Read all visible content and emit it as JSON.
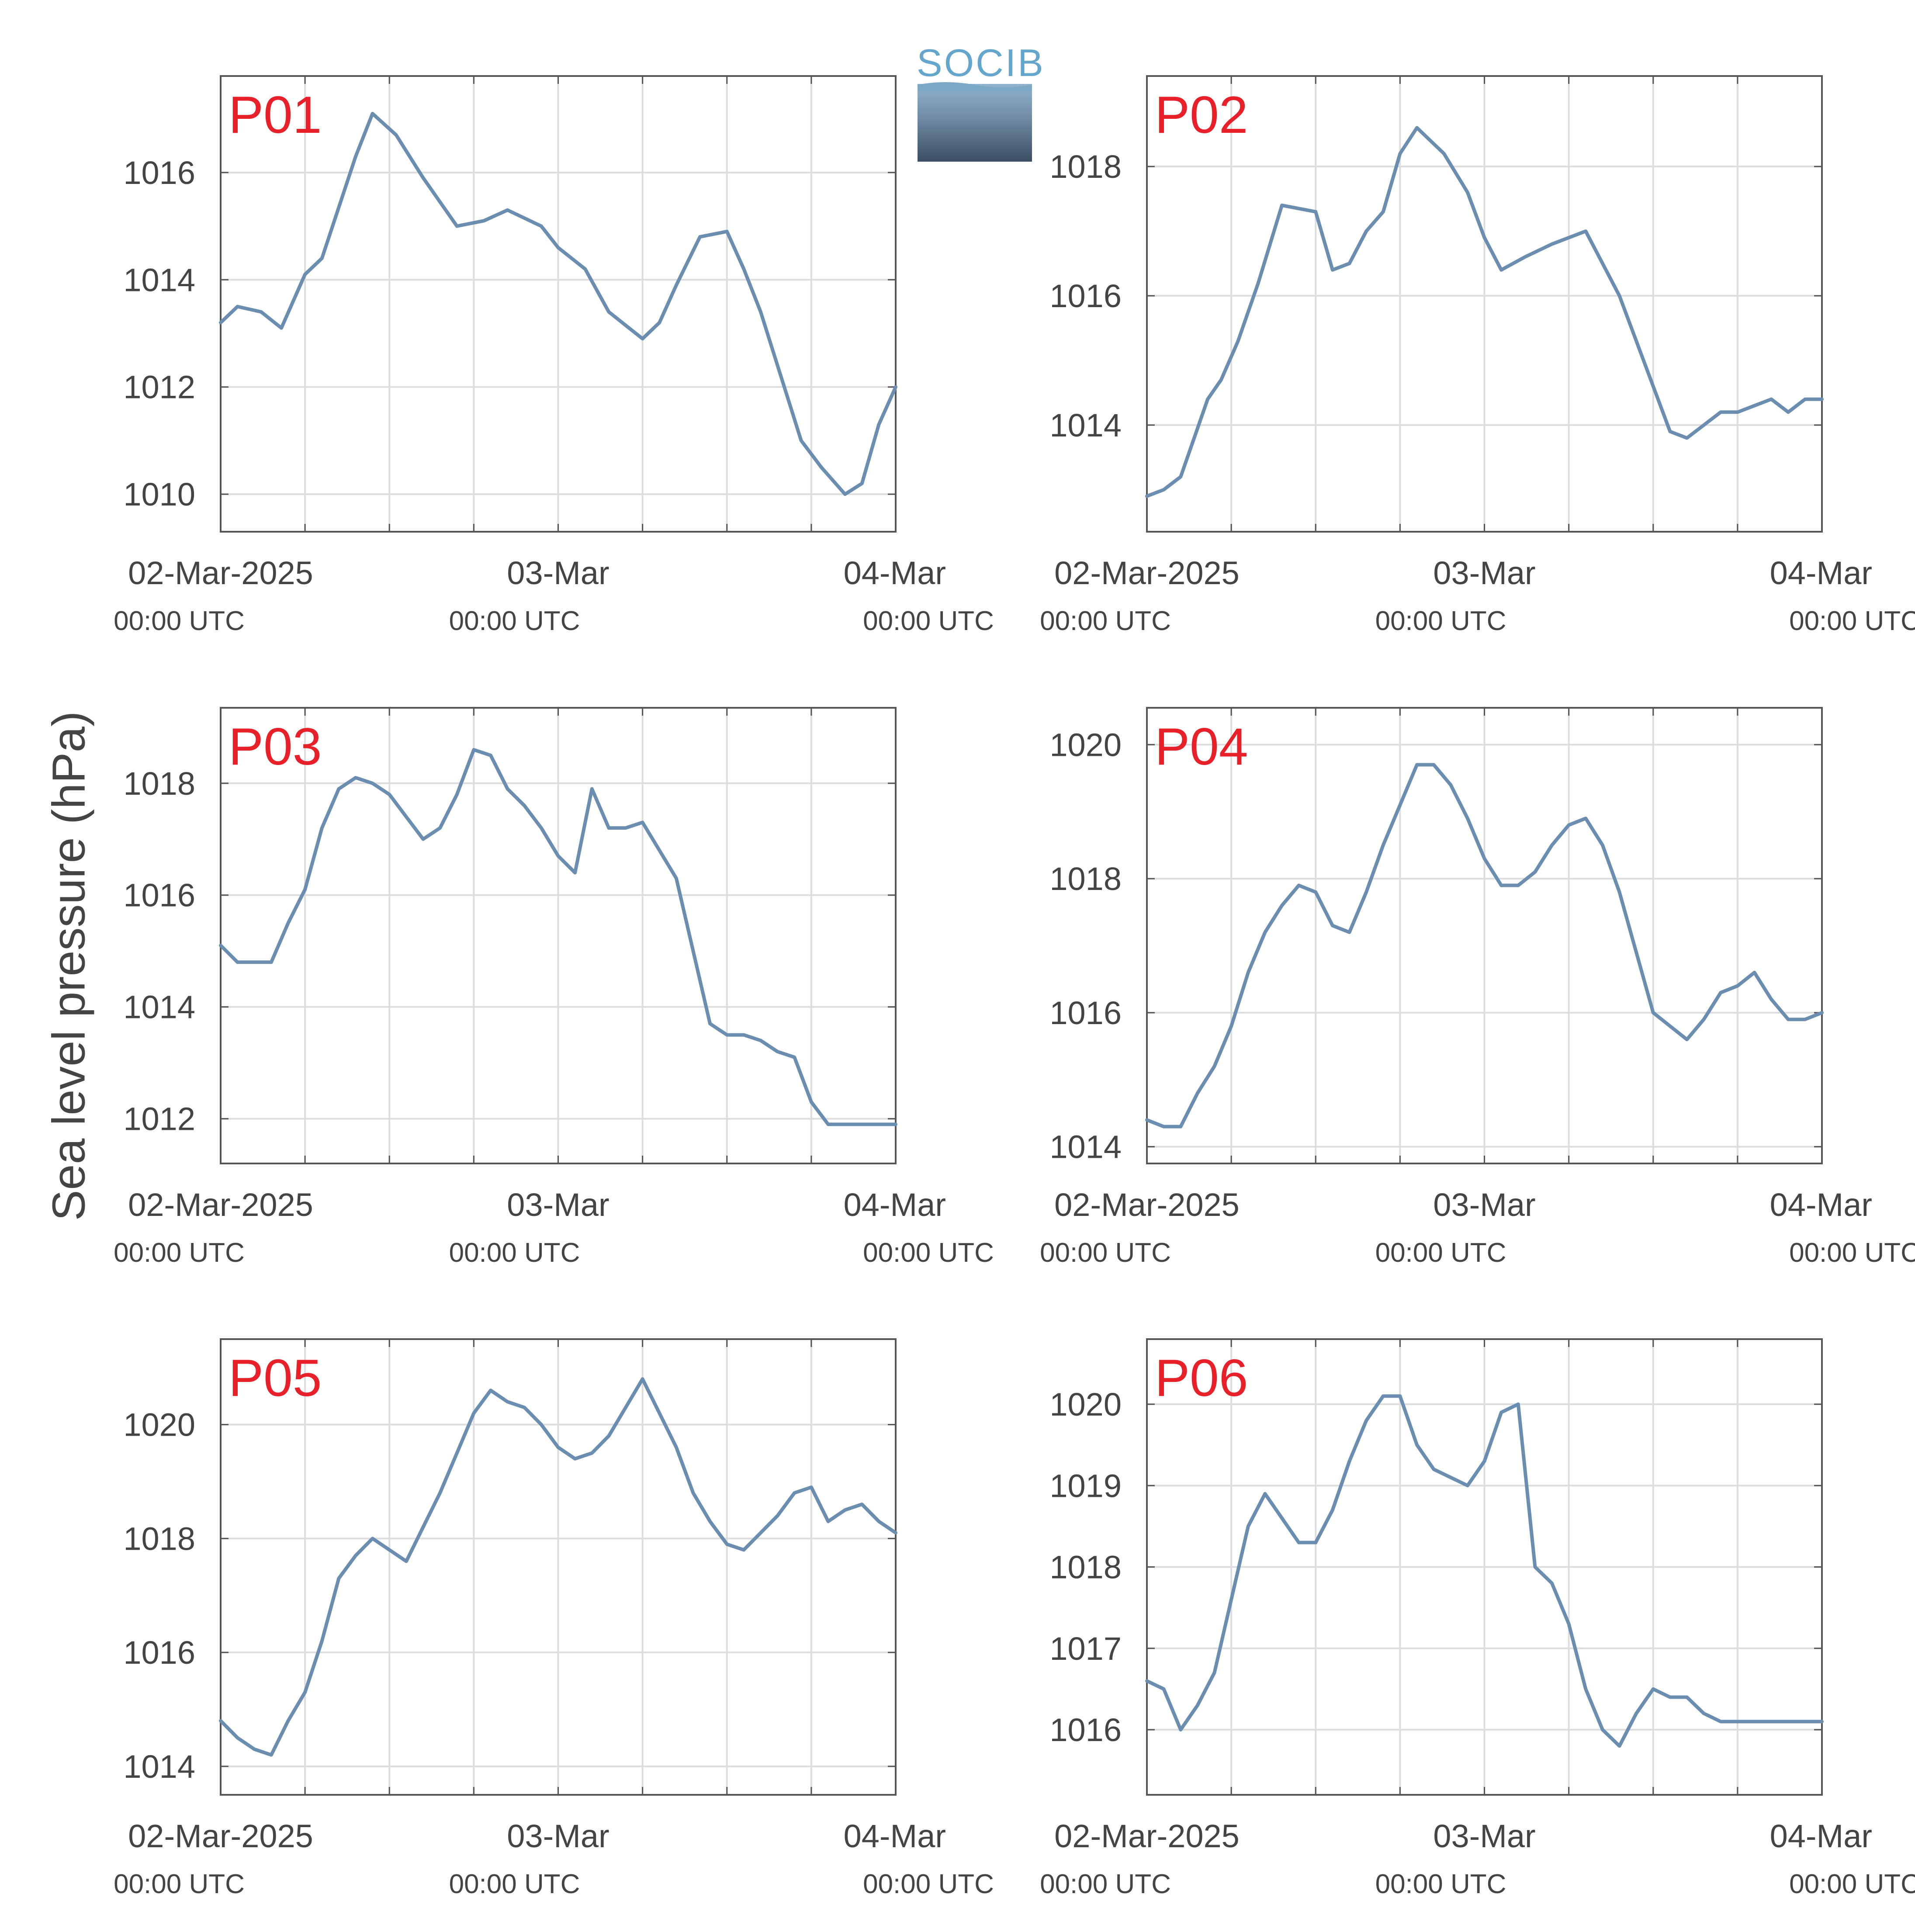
{
  "ylabel": "Sea level pressure (hPa)",
  "logo": {
    "text": "SOCIB"
  },
  "colors": {
    "line": "#6a8db0",
    "title": "#e8202a",
    "axis": "#555555",
    "grid": "#dddddd",
    "text": "#444444"
  },
  "x_ticks": [
    {
      "day": 0,
      "date": "02-Mar-2025",
      "time": "00:00 UTC"
    },
    {
      "day": 1,
      "date": "03-Mar",
      "time": "00:00 UTC"
    },
    {
      "day": 2,
      "date": "04-Mar",
      "time": "00:00 UTC"
    }
  ],
  "chart_data": [
    {
      "type": "line",
      "title": "P01",
      "xlim": [
        0,
        2
      ],
      "ylim": [
        1009.3,
        1017.8
      ],
      "yticks": [
        1010,
        1012,
        1014,
        1016
      ],
      "x": [
        0.0,
        0.05,
        0.12,
        0.18,
        0.25,
        0.3,
        0.4,
        0.45,
        0.52,
        0.6,
        0.7,
        0.78,
        0.85,
        0.95,
        1.0,
        1.08,
        1.15,
        1.25,
        1.3,
        1.35,
        1.42,
        1.5,
        1.55,
        1.6,
        1.65,
        1.72,
        1.78,
        1.85,
        1.9,
        1.95,
        2.0
      ],
      "y": [
        1013.2,
        1013.5,
        1013.4,
        1013.1,
        1014.1,
        1014.4,
        1016.3,
        1017.1,
        1016.7,
        1015.9,
        1015.0,
        1015.1,
        1015.3,
        1015.0,
        1014.6,
        1014.2,
        1013.4,
        1012.9,
        1013.2,
        1013.9,
        1014.8,
        1014.9,
        1014.2,
        1013.4,
        1012.4,
        1011.0,
        1010.5,
        1010.0,
        1010.2,
        1011.3,
        1012.0
      ]
    },
    {
      "type": "line",
      "title": "P02",
      "xlim": [
        0,
        2
      ],
      "ylim": [
        1012.35,
        1019.4
      ],
      "yticks": [
        1014,
        1016,
        1018
      ],
      "x": [
        0.0,
        0.05,
        0.1,
        0.18,
        0.22,
        0.27,
        0.33,
        0.4,
        0.5,
        0.55,
        0.6,
        0.65,
        0.7,
        0.75,
        0.8,
        0.88,
        0.95,
        1.0,
        1.05,
        1.12,
        1.2,
        1.3,
        1.35,
        1.4,
        1.5,
        1.55,
        1.6,
        1.7,
        1.75,
        1.8,
        1.85,
        1.9,
        1.95,
        2.0
      ],
      "y": [
        1012.9,
        1013.0,
        1013.2,
        1014.4,
        1014.7,
        1015.3,
        1016.2,
        1017.4,
        1017.3,
        1016.4,
        1016.5,
        1017.0,
        1017.3,
        1018.2,
        1018.6,
        1018.2,
        1017.6,
        1016.9,
        1016.4,
        1016.6,
        1016.8,
        1017.0,
        1016.5,
        1016.0,
        1014.6,
        1013.9,
        1013.8,
        1014.2,
        1014.2,
        1014.3,
        1014.4,
        1014.2,
        1014.4,
        1014.4
      ]
    },
    {
      "type": "line",
      "title": "P03",
      "xlim": [
        0,
        2
      ],
      "ylim": [
        1011.2,
        1019.35
      ],
      "yticks": [
        1012,
        1014,
        1016,
        1018
      ],
      "x": [
        0.0,
        0.05,
        0.1,
        0.15,
        0.2,
        0.25,
        0.3,
        0.35,
        0.4,
        0.45,
        0.5,
        0.55,
        0.6,
        0.65,
        0.7,
        0.75,
        0.8,
        0.85,
        0.9,
        0.95,
        1.0,
        1.05,
        1.1,
        1.15,
        1.2,
        1.25,
        1.3,
        1.35,
        1.4,
        1.45,
        1.5,
        1.55,
        1.6,
        1.65,
        1.7,
        1.75,
        1.8,
        1.85,
        1.9,
        1.95,
        2.0
      ],
      "y": [
        1015.1,
        1014.8,
        1014.8,
        1014.8,
        1015.5,
        1016.1,
        1017.2,
        1017.9,
        1018.1,
        1018.0,
        1017.8,
        1017.4,
        1017.0,
        1017.2,
        1017.8,
        1018.6,
        1018.5,
        1017.9,
        1017.6,
        1017.2,
        1016.7,
        1016.4,
        1017.9,
        1017.2,
        1017.2,
        1017.3,
        1016.8,
        1016.3,
        1015.0,
        1013.7,
        1013.5,
        1013.5,
        1013.4,
        1013.2,
        1013.1,
        1012.3,
        1011.9,
        1011.9,
        1011.9,
        1011.9,
        1011.9
      ]
    },
    {
      "type": "line",
      "title": "P04",
      "xlim": [
        0,
        2
      ],
      "ylim": [
        1013.75,
        1020.55
      ],
      "yticks": [
        1014,
        1016,
        1018,
        1020
      ],
      "x": [
        0.0,
        0.05,
        0.1,
        0.15,
        0.2,
        0.25,
        0.3,
        0.35,
        0.4,
        0.45,
        0.5,
        0.55,
        0.6,
        0.65,
        0.7,
        0.75,
        0.8,
        0.85,
        0.9,
        0.95,
        1.0,
        1.05,
        1.1,
        1.15,
        1.2,
        1.25,
        1.3,
        1.35,
        1.4,
        1.45,
        1.5,
        1.55,
        1.6,
        1.65,
        1.7,
        1.75,
        1.8,
        1.85,
        1.9,
        1.95,
        2.0
      ],
      "y": [
        1014.4,
        1014.3,
        1014.3,
        1014.8,
        1015.2,
        1015.8,
        1016.6,
        1017.2,
        1017.6,
        1017.9,
        1017.8,
        1017.3,
        1017.2,
        1017.8,
        1018.5,
        1019.1,
        1019.7,
        1019.7,
        1019.4,
        1018.9,
        1018.3,
        1017.9,
        1017.9,
        1018.1,
        1018.5,
        1018.8,
        1018.9,
        1018.5,
        1017.8,
        1016.9,
        1016.0,
        1015.8,
        1015.6,
        1015.9,
        1016.3,
        1016.4,
        1016.6,
        1016.2,
        1015.9,
        1015.9,
        1016.0
      ]
    },
    {
      "type": "line",
      "title": "P05",
      "xlim": [
        0,
        2
      ],
      "ylim": [
        1013.5,
        1021.5
      ],
      "yticks": [
        1014,
        1016,
        1018,
        1020
      ],
      "x": [
        0.0,
        0.05,
        0.1,
        0.15,
        0.2,
        0.25,
        0.3,
        0.35,
        0.4,
        0.45,
        0.5,
        0.55,
        0.6,
        0.65,
        0.7,
        0.75,
        0.8,
        0.85,
        0.9,
        0.95,
        1.0,
        1.05,
        1.1,
        1.15,
        1.2,
        1.25,
        1.3,
        1.35,
        1.4,
        1.45,
        1.5,
        1.55,
        1.6,
        1.65,
        1.7,
        1.75,
        1.8,
        1.85,
        1.9,
        1.95,
        2.0
      ],
      "y": [
        1014.8,
        1014.5,
        1014.3,
        1014.2,
        1014.8,
        1015.3,
        1016.2,
        1017.3,
        1017.7,
        1018.0,
        1017.8,
        1017.6,
        1018.2,
        1018.8,
        1019.5,
        1020.2,
        1020.6,
        1020.4,
        1020.3,
        1020.0,
        1019.6,
        1019.4,
        1019.5,
        1019.8,
        1020.3,
        1020.8,
        1020.2,
        1019.6,
        1018.8,
        1018.3,
        1017.9,
        1017.8,
        1018.1,
        1018.4,
        1018.8,
        1018.9,
        1018.3,
        1018.5,
        1018.6,
        1018.3,
        1018.1
      ]
    },
    {
      "type": "line",
      "title": "P06",
      "xlim": [
        0,
        2
      ],
      "ylim": [
        1015.2,
        1020.8
      ],
      "yticks": [
        1016,
        1017,
        1018,
        1019,
        1020
      ],
      "x": [
        0.0,
        0.05,
        0.1,
        0.15,
        0.2,
        0.25,
        0.3,
        0.35,
        0.4,
        0.45,
        0.5,
        0.55,
        0.6,
        0.65,
        0.7,
        0.75,
        0.8,
        0.85,
        0.9,
        0.95,
        1.0,
        1.05,
        1.1,
        1.15,
        1.2,
        1.25,
        1.3,
        1.35,
        1.4,
        1.45,
        1.5,
        1.55,
        1.6,
        1.65,
        1.7,
        1.75,
        1.8,
        1.85,
        1.9,
        1.95,
        2.0
      ],
      "y": [
        1016.6,
        1016.5,
        1016.0,
        1016.3,
        1016.7,
        1017.6,
        1018.5,
        1018.9,
        1018.6,
        1018.3,
        1018.3,
        1018.7,
        1019.3,
        1019.8,
        1020.1,
        1020.1,
        1019.5,
        1019.2,
        1019.1,
        1019.0,
        1019.3,
        1019.9,
        1020.0,
        1018.0,
        1017.8,
        1017.3,
        1016.5,
        1016.0,
        1015.8,
        1016.2,
        1016.5,
        1016.4,
        1016.4,
        1016.2,
        1016.1,
        1016.1,
        1016.1,
        1016.1,
        1016.1,
        1016.1,
        1016.1
      ]
    }
  ]
}
